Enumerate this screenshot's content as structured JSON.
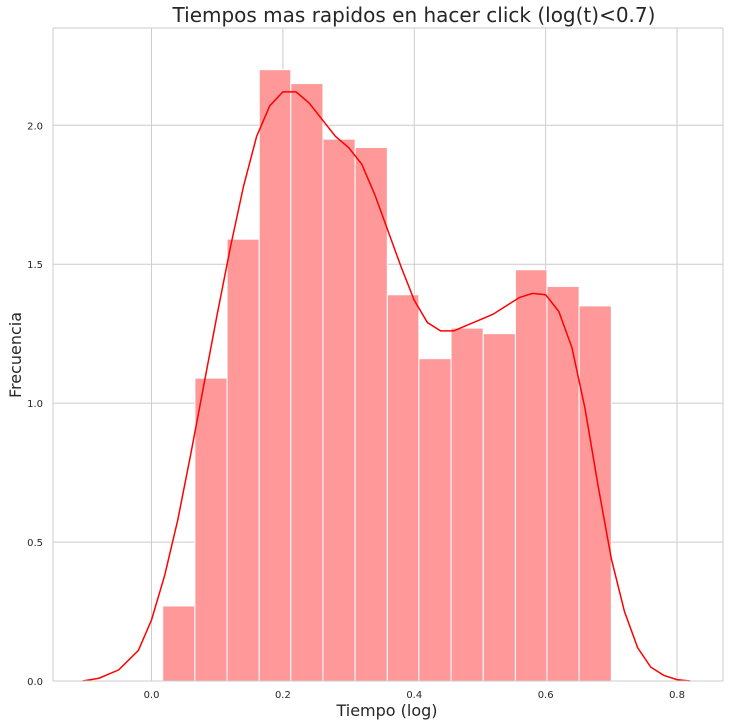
{
  "chart_data": {
    "type": "bar",
    "title": "Tiempos mas rapidos en hacer click (log(t)<0.7)",
    "xlabel": "Tiempo (log)",
    "ylabel": "Frecuencia",
    "xlim": [
      -0.15,
      0.87
    ],
    "ylim": [
      0,
      2.35
    ],
    "xticks": [
      0.0,
      0.2,
      0.4,
      0.6,
      0.8
    ],
    "yticks": [
      0.0,
      0.5,
      1.0,
      1.5,
      2.0
    ],
    "grid": true,
    "bar_color": "#ff9999",
    "bar_edge_color": "#ffffff",
    "kde_color": "#ff0000",
    "bins": [
      {
        "x0": 0.017,
        "x1": 0.066,
        "value": 0.27
      },
      {
        "x0": 0.066,
        "x1": 0.115,
        "value": 1.09
      },
      {
        "x0": 0.115,
        "x1": 0.164,
        "value": 1.59
      },
      {
        "x0": 0.164,
        "x1": 0.212,
        "value": 2.2
      },
      {
        "x0": 0.212,
        "x1": 0.261,
        "value": 2.15
      },
      {
        "x0": 0.261,
        "x1": 0.31,
        "value": 1.95
      },
      {
        "x0": 0.31,
        "x1": 0.359,
        "value": 1.92
      },
      {
        "x0": 0.359,
        "x1": 0.407,
        "value": 1.39
      },
      {
        "x0": 0.407,
        "x1": 0.456,
        "value": 1.16
      },
      {
        "x0": 0.456,
        "x1": 0.505,
        "value": 1.27
      },
      {
        "x0": 0.505,
        "x1": 0.554,
        "value": 1.25
      },
      {
        "x0": 0.554,
        "x1": 0.602,
        "value": 1.48
      },
      {
        "x0": 0.602,
        "x1": 0.651,
        "value": 1.42
      },
      {
        "x0": 0.651,
        "x1": 0.7,
        "value": 1.35
      }
    ],
    "kde": {
      "x": [
        -0.105,
        -0.08,
        -0.05,
        -0.02,
        0.0,
        0.02,
        0.04,
        0.06,
        0.08,
        0.1,
        0.12,
        0.14,
        0.16,
        0.18,
        0.2,
        0.22,
        0.24,
        0.26,
        0.28,
        0.3,
        0.32,
        0.34,
        0.36,
        0.38,
        0.4,
        0.42,
        0.44,
        0.46,
        0.48,
        0.5,
        0.52,
        0.54,
        0.56,
        0.58,
        0.6,
        0.62,
        0.64,
        0.66,
        0.68,
        0.7,
        0.72,
        0.74,
        0.76,
        0.78,
        0.8,
        0.82
      ],
      "y": [
        0.0,
        0.01,
        0.04,
        0.11,
        0.22,
        0.38,
        0.58,
        0.82,
        1.07,
        1.32,
        1.56,
        1.78,
        1.96,
        2.07,
        2.12,
        2.12,
        2.08,
        2.02,
        1.96,
        1.92,
        1.86,
        1.75,
        1.62,
        1.49,
        1.37,
        1.29,
        1.26,
        1.26,
        1.28,
        1.3,
        1.32,
        1.35,
        1.38,
        1.395,
        1.39,
        1.33,
        1.2,
        0.98,
        0.7,
        0.44,
        0.25,
        0.12,
        0.05,
        0.02,
        0.005,
        0.0
      ]
    }
  }
}
